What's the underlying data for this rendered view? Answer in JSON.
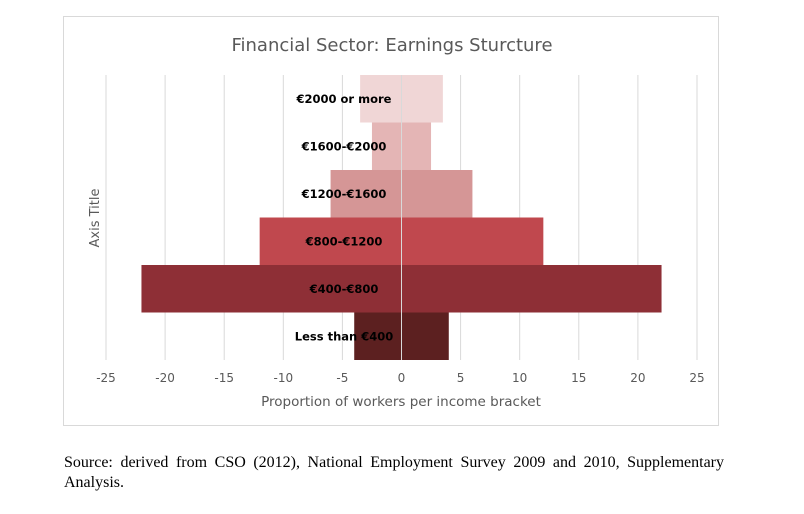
{
  "chart_data": {
    "type": "bar",
    "orientation": "horizontal-pyramid",
    "title": "Financial Sector: Earnings Sturcture",
    "xlabel": "Proportion of workers per income bracket",
    "ylabel": "Axis Title",
    "xlim": [
      -25,
      25
    ],
    "x_ticks": [
      "-25",
      "-20",
      "-15",
      "-10",
      "-5",
      "0",
      "5",
      "10",
      "15",
      "20",
      "25"
    ],
    "categories": [
      "Less than €400",
      "€400-€800",
      "€800-€1200",
      "€1200-€1600",
      "€1600-€2000",
      "€2000 or more"
    ],
    "left_values": [
      -4,
      -22,
      -12,
      -6,
      -2.5,
      -3.5
    ],
    "right_values": [
      4,
      22,
      12,
      6,
      2.5,
      3.5
    ],
    "colors": [
      "#5c2020",
      "#8e2f36",
      "#c0484e",
      "#d59696",
      "#e4b5b5",
      "#f0d6d6"
    ],
    "grid": "vertical",
    "legend": "none"
  },
  "source_note": "Source: derived from CSO (2012), National Employment Survey 2009 and 2010, Supplementary Analysis."
}
